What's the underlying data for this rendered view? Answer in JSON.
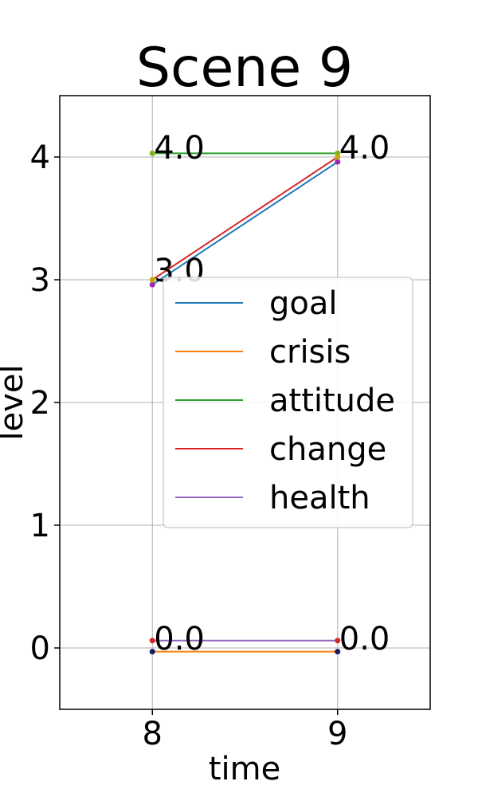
{
  "chart_data": {
    "type": "line",
    "title": "Scene 9",
    "xlabel": "time",
    "ylabel": "level",
    "x": [
      8,
      9
    ],
    "xlim": [
      7.5,
      9.5
    ],
    "ylim": [
      -0.5,
      4.5
    ],
    "xticks": [
      8,
      9
    ],
    "yticks": [
      0,
      1,
      2,
      3,
      4
    ],
    "grid": true,
    "legend_position": "center-right",
    "series": [
      {
        "name": "goal",
        "color": "#1f77b4",
        "values": [
          3.0,
          4.0
        ]
      },
      {
        "name": "crisis",
        "color": "#ff7f0e",
        "values": [
          0.0,
          0.0
        ]
      },
      {
        "name": "attitude",
        "color": "#2ca02c",
        "values": [
          4.0,
          4.0
        ]
      },
      {
        "name": "change",
        "color": "#d62728",
        "values": [
          3.0,
          4.0
        ]
      },
      {
        "name": "health",
        "color": "#9467bd",
        "values": [
          0.0,
          0.0
        ]
      }
    ],
    "data_labels": [
      {
        "x": 8,
        "y": 4.0,
        "text": "4.0"
      },
      {
        "x": 9,
        "y": 4.0,
        "text": "4.0"
      },
      {
        "x": 8,
        "y": 3.0,
        "text": "3.0"
      },
      {
        "x": 8,
        "y": 0.0,
        "text": "0.0"
      },
      {
        "x": 9,
        "y": 0.0,
        "text": "0.0"
      }
    ]
  }
}
